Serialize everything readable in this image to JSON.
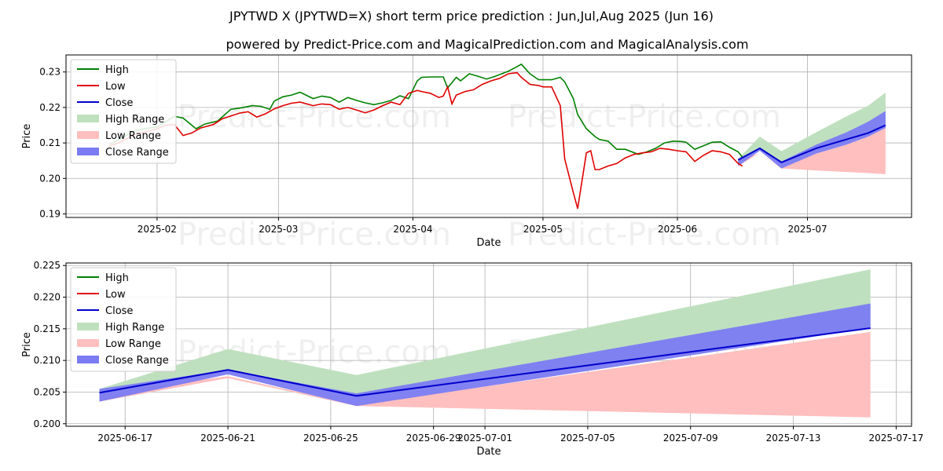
{
  "title": "JPYTWD X (JPYTWD=X) short term price prediction : Jun,Jul,Aug 2025 (Jun 16)",
  "subtitle": "powered by Predict-Price.com and MagicalPrediction.com and MagicalAnalysis.com",
  "watermark": "Predict-Price.com",
  "colors": {
    "high": "#008000",
    "low": "#e00000",
    "close": "#0000cc",
    "high_range": "#bfe0bf",
    "low_range": "#ffbfbf",
    "close_range": "#7b7bf2"
  },
  "legend": [
    "High",
    "Low",
    "Close",
    "High Range",
    "Low Range",
    "Close Range"
  ],
  "chart_data": [
    {
      "type": "line",
      "title": "JPYTWD X (JPYTWD=X) short term price prediction : Jun,Jul,Aug 2025 (Jun 16)",
      "xlabel": "Date",
      "ylabel": "Price",
      "xlim": [
        -10,
        185
      ],
      "ylim": [
        0.189,
        0.2348
      ],
      "grid": true,
      "legend_position": "top-left",
      "x_ticks": [
        {
          "x": 11,
          "label": "2025-02"
        },
        {
          "x": 39,
          "label": "2025-03"
        },
        {
          "x": 70,
          "label": "2025-04"
        },
        {
          "x": 100,
          "label": "2025-05"
        },
        {
          "x": 131,
          "label": "2025-06"
        },
        {
          "x": 161,
          "label": "2025-07"
        }
      ],
      "y_ticks": [
        {
          "y": 0.19,
          "label": "0.19"
        },
        {
          "y": 0.2,
          "label": "0.20"
        },
        {
          "y": 0.21,
          "label": "0.21"
        },
        {
          "y": 0.22,
          "label": "0.22"
        },
        {
          "y": 0.23,
          "label": "0.23"
        }
      ],
      "series": [
        {
          "name": "High",
          "x": [
            0,
            3,
            6,
            8,
            11,
            13,
            15,
            17,
            20,
            22,
            25,
            28,
            30,
            33,
            35,
            37,
            38,
            40,
            42,
            44,
            47,
            49,
            51,
            53,
            55,
            57,
            59,
            61,
            63,
            65,
            67,
            69,
            71,
            72,
            74,
            77,
            78,
            80,
            81,
            83,
            85,
            87,
            89,
            92,
            94,
            95,
            97,
            99,
            100,
            102,
            104,
            105,
            107,
            108,
            110,
            112,
            113,
            115,
            117,
            119,
            122,
            124,
            126,
            128,
            130,
            132,
            133,
            135,
            137,
            139,
            141,
            143,
            145,
            146
          ],
          "values": [
            0.2095,
            0.2115,
            0.2135,
            0.214,
            0.2145,
            0.216,
            0.2175,
            0.217,
            0.214,
            0.2153,
            0.2162,
            0.2195,
            0.2198,
            0.2205,
            0.2203,
            0.2195,
            0.2218,
            0.223,
            0.2235,
            0.2243,
            0.2225,
            0.2232,
            0.2228,
            0.2215,
            0.2228,
            0.222,
            0.2213,
            0.2208,
            0.2213,
            0.222,
            0.2233,
            0.2225,
            0.2275,
            0.2285,
            0.2286,
            0.2286,
            0.2255,
            0.2285,
            0.2275,
            0.2295,
            0.2288,
            0.228,
            0.2288,
            0.2302,
            0.2315,
            0.2322,
            0.2295,
            0.2278,
            0.2278,
            0.2278,
            0.2285,
            0.2272,
            0.2225,
            0.218,
            0.214,
            0.2118,
            0.211,
            0.2105,
            0.2082,
            0.2082,
            0.2068,
            0.2075,
            0.2085,
            0.21,
            0.2105,
            0.2104,
            0.2102,
            0.2082,
            0.2092,
            0.2102,
            0.2103,
            0.2088,
            0.2075,
            0.206
          ]
        },
        {
          "name": "Low",
          "x": [
            0,
            3,
            6,
            8,
            11,
            13,
            15,
            17,
            19,
            21,
            24,
            26,
            28,
            30,
            32,
            34,
            36,
            38,
            40,
            42,
            44,
            47,
            49,
            51,
            53,
            55,
            57,
            59,
            61,
            63,
            65,
            67,
            69,
            71,
            72,
            74,
            76,
            77,
            78,
            79,
            80,
            82,
            84,
            86,
            88,
            90,
            92,
            94,
            95,
            97,
            99,
            100,
            102,
            104,
            105,
            107,
            108,
            110,
            111,
            112,
            113,
            115,
            117,
            119,
            121,
            123,
            125,
            127,
            129,
            131,
            133,
            135,
            137,
            139,
            141,
            143,
            145,
            146
          ],
          "values": [
            0.209,
            0.2105,
            0.2125,
            0.213,
            0.214,
            0.215,
            0.2152,
            0.2121,
            0.2128,
            0.2142,
            0.2152,
            0.2168,
            0.2176,
            0.2184,
            0.2188,
            0.2173,
            0.2182,
            0.2196,
            0.2205,
            0.2212,
            0.2215,
            0.2205,
            0.221,
            0.2208,
            0.2195,
            0.22,
            0.2193,
            0.2185,
            0.2193,
            0.2205,
            0.2215,
            0.2208,
            0.224,
            0.2248,
            0.2245,
            0.224,
            0.2228,
            0.2232,
            0.2258,
            0.221,
            0.2235,
            0.2245,
            0.225,
            0.2265,
            0.2275,
            0.2282,
            0.2295,
            0.2298,
            0.2285,
            0.2265,
            0.2262,
            0.2258,
            0.2258,
            0.2205,
            0.2055,
            0.196,
            0.1915,
            0.2072,
            0.2078,
            0.2025,
            0.2025,
            0.2035,
            0.2042,
            0.2058,
            0.2068,
            0.2072,
            0.2075,
            0.2085,
            0.2082,
            0.2078,
            0.2075,
            0.2048,
            0.2065,
            0.2078,
            0.2075,
            0.2068,
            0.2042,
            0.2035
          ]
        },
        {
          "name": "Close",
          "x": [
            145,
            150,
            155,
            163,
            170,
            175,
            179
          ],
          "values": [
            0.2052,
            0.2085,
            0.2045,
            0.2085,
            0.211,
            0.2128,
            0.215
          ]
        },
        {
          "name": "High Range",
          "x": [
            145,
            150,
            155,
            163,
            170,
            175,
            179
          ],
          "upper": [
            0.2055,
            0.2118,
            0.2077,
            0.213,
            0.2175,
            0.2205,
            0.2242
          ],
          "lower": [
            0.2052,
            0.2085,
            0.2045,
            0.2085,
            0.211,
            0.2128,
            0.215
          ]
        },
        {
          "name": "Low Range",
          "x": [
            145,
            150,
            155,
            163,
            170,
            175,
            179
          ],
          "upper": [
            0.2048,
            0.2072,
            0.203,
            0.207,
            0.2095,
            0.2118,
            0.2142
          ],
          "lower": [
            0.2035,
            0.2072,
            0.2028,
            0.2022,
            0.2018,
            0.2015,
            0.2012
          ]
        },
        {
          "name": "Close Range",
          "x": [
            145,
            150,
            155,
            163,
            170,
            175,
            179
          ],
          "upper": [
            0.2055,
            0.2085,
            0.2048,
            0.2095,
            0.213,
            0.216,
            0.219
          ],
          "lower": [
            0.2035,
            0.2078,
            0.2028,
            0.207,
            0.2095,
            0.2118,
            0.2142
          ]
        }
      ]
    },
    {
      "type": "line",
      "title": "",
      "xlabel": "Date",
      "ylabel": "Price",
      "xlim": [
        -1.3,
        31.6
      ],
      "ylim": [
        0.1996,
        0.2254
      ],
      "grid": true,
      "legend_position": "top-left",
      "x_ticks": [
        {
          "x": 1,
          "label": "2025-06-17"
        },
        {
          "x": 5,
          "label": "2025-06-21"
        },
        {
          "x": 9,
          "label": "2025-06-25"
        },
        {
          "x": 13,
          "label": "2025-06-29"
        },
        {
          "x": 15,
          "label": "2025-07-01"
        },
        {
          "x": 19,
          "label": "2025-07-05"
        },
        {
          "x": 23,
          "label": "2025-07-09"
        },
        {
          "x": 27,
          "label": "2025-07-13"
        },
        {
          "x": 31,
          "label": "2025-07-17"
        }
      ],
      "y_ticks": [
        {
          "y": 0.2,
          "label": "0.200"
        },
        {
          "y": 0.205,
          "label": "0.205"
        },
        {
          "y": 0.21,
          "label": "0.210"
        },
        {
          "y": 0.215,
          "label": "0.215"
        },
        {
          "y": 0.22,
          "label": "0.220"
        },
        {
          "y": 0.225,
          "label": "0.225"
        }
      ],
      "series": [
        {
          "name": "Close",
          "x": [
            0,
            5,
            10,
            30
          ],
          "values": [
            0.2049,
            0.2085,
            0.2044,
            0.2151
          ]
        },
        {
          "name": "High Range",
          "x": [
            0,
            5,
            10,
            30
          ],
          "upper": [
            0.2055,
            0.2118,
            0.2077,
            0.2244
          ],
          "lower": [
            0.2049,
            0.2085,
            0.2044,
            0.2151
          ]
        },
        {
          "name": "Low Range",
          "x": [
            0,
            5,
            10,
            30
          ],
          "upper": [
            0.2048,
            0.2075,
            0.203,
            0.2145
          ],
          "lower": [
            0.2035,
            0.2072,
            0.2028,
            0.201
          ]
        },
        {
          "name": "Close Range",
          "x": [
            0,
            5,
            10,
            30
          ],
          "upper": [
            0.2055,
            0.2085,
            0.2048,
            0.219
          ],
          "lower": [
            0.2035,
            0.2078,
            0.2028,
            0.2151
          ]
        }
      ]
    }
  ]
}
